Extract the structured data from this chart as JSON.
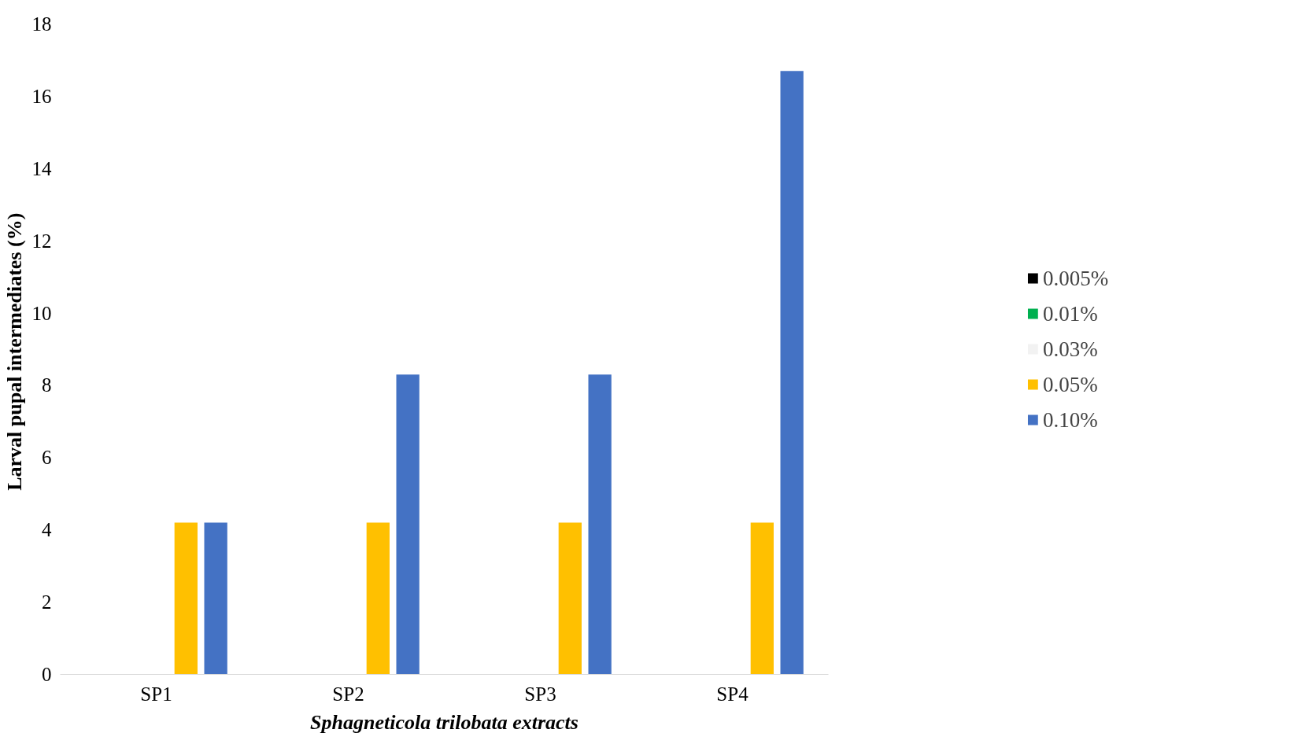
{
  "chart_data": {
    "type": "bar",
    "xlabel": "Sphagneticola trilobata extracts",
    "ylabel": "Larval pupal intermediates  (%)",
    "categories": [
      "SP1",
      "SP2",
      "SP3",
      "SP4"
    ],
    "series": [
      {
        "name": "0.005%",
        "color": "#000000",
        "values": [
          0,
          0,
          0,
          0
        ]
      },
      {
        "name": "0.01%",
        "color": "#00b050",
        "values": [
          0,
          0,
          0,
          0
        ]
      },
      {
        "name": "0.03%",
        "color": "#f2f2f2",
        "values": [
          0,
          0,
          0,
          0
        ]
      },
      {
        "name": "0.05%",
        "color": "#ffc000",
        "values": [
          4.2,
          4.2,
          4.2,
          4.2
        ]
      },
      {
        "name": "0.10%",
        "color": "#4472c4",
        "values": [
          4.2,
          8.3,
          8.3,
          16.7
        ]
      }
    ],
    "ylim": [
      0,
      18
    ],
    "yticks": [
      0,
      2,
      4,
      6,
      8,
      10,
      12,
      14,
      16,
      18
    ],
    "grid": false,
    "legend": "right"
  }
}
